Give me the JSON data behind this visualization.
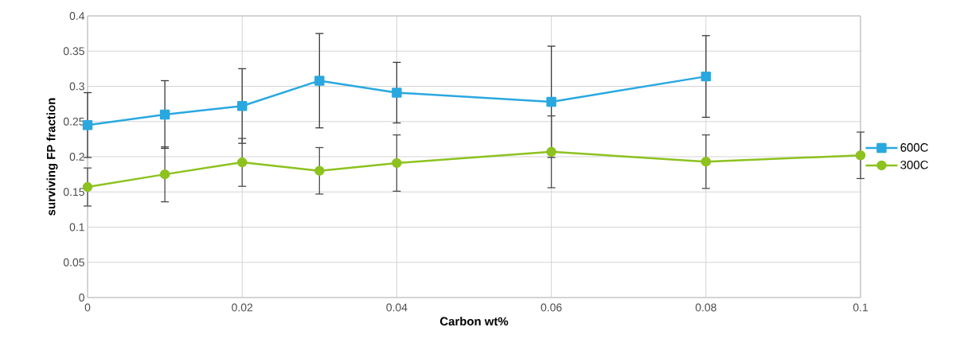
{
  "chart_data": {
    "type": "line",
    "xlabel": "Carbon wt%",
    "ylabel": "surviving FP fraction",
    "x": [
      0,
      0.01,
      0.02,
      0.03,
      0.04,
      0.06,
      0.08,
      0.1
    ],
    "series": [
      {
        "name": "600C",
        "color": "#29a8e0",
        "marker": "square",
        "values": [
          0.245,
          0.26,
          0.272,
          0.308,
          0.291,
          0.278,
          0.314,
          null
        ],
        "errors": [
          0.046,
          0.048,
          0.053,
          0.067,
          0.043,
          0.079,
          0.058,
          null
        ]
      },
      {
        "name": "300C",
        "color": "#8dc21f",
        "marker": "circle",
        "values": [
          0.157,
          0.175,
          0.192,
          0.18,
          0.191,
          0.207,
          0.193,
          0.202
        ],
        "errors": [
          0.027,
          0.039,
          0.034,
          0.033,
          0.04,
          0.051,
          0.038,
          0.033
        ]
      }
    ],
    "xlim": [
      0,
      0.1
    ],
    "xticks": [
      0,
      0.02,
      0.04,
      0.06,
      0.08,
      0.1
    ],
    "ylim": [
      0,
      0.4
    ],
    "yticks": [
      0,
      0.05,
      0.1,
      0.15,
      0.2,
      0.25,
      0.3,
      0.35,
      0.4
    ],
    "grid": true,
    "legend": "right",
    "line_style": "solid"
  }
}
